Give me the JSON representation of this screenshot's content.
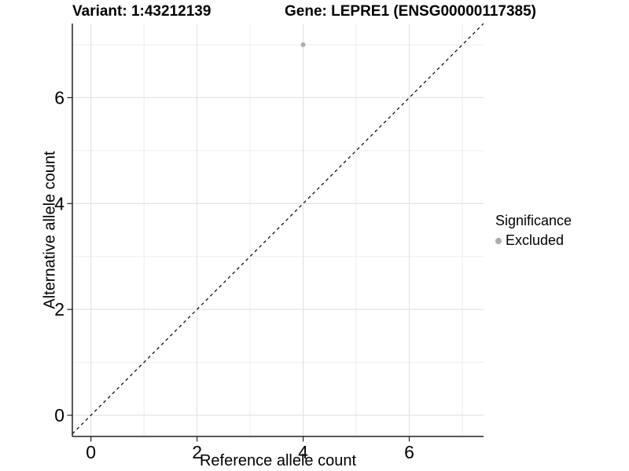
{
  "header": {
    "title_left": "Variant: 1:43212139",
    "title_right": "Gene: LEPRE1 (ENSG00000117385)"
  },
  "chart_data": {
    "type": "scatter",
    "title_left": "Variant: 1:43212139",
    "title_right": "Gene: LEPRE1 (ENSG00000117385)",
    "xlabel": "Reference allele count",
    "ylabel": "Alternative allele count",
    "xlim": [
      -0.35,
      7.4
    ],
    "ylim": [
      -0.4,
      7.4
    ],
    "x_major_ticks": [
      0,
      2,
      4,
      6
    ],
    "x_minor_ticks": [
      1,
      3,
      5,
      7
    ],
    "y_major_ticks": [
      0,
      2,
      4,
      6
    ],
    "y_minor_ticks": [
      1,
      3,
      5,
      7
    ],
    "grid": true,
    "identity_line": {
      "equation": "y = x",
      "style": "dashed",
      "color": "#000000"
    },
    "series": [
      {
        "name": "Excluded",
        "color": "#adadad",
        "points": [
          {
            "x": 4,
            "y": 7
          }
        ]
      }
    ],
    "legend": {
      "position": "right",
      "title": "Significance",
      "items": [
        {
          "label": "Excluded",
          "color": "#adadad"
        }
      ]
    },
    "colors": {
      "point": "#adadad",
      "grid_major": "#e3e3e3",
      "grid_minor": "#ededed",
      "axis_line": "#222222",
      "text": "#000000",
      "background": "#ffffff"
    }
  }
}
